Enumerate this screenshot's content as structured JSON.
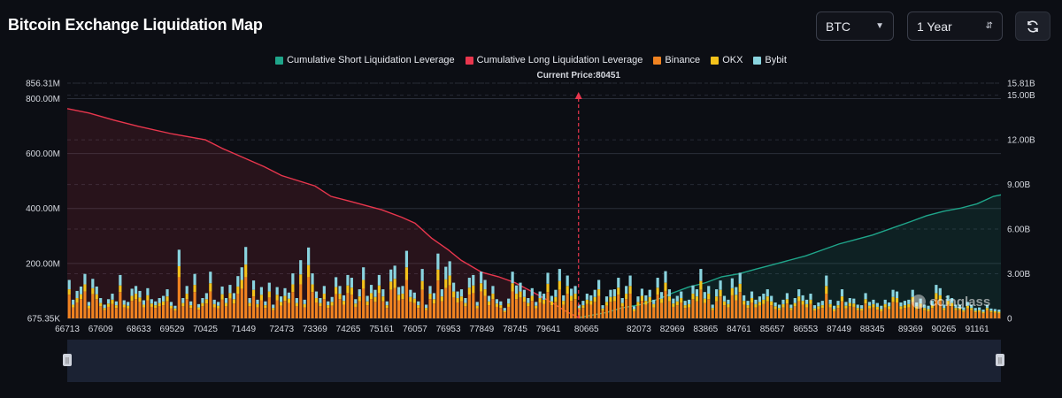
{
  "title": "Bitcoin Exchange Liquidation Map",
  "controls": {
    "coin_select": "BTC",
    "range_select": "1 Year",
    "refresh_icon": "refresh-icon"
  },
  "watermark": "coinglass",
  "chart_data": {
    "type": "bar",
    "stacked": true,
    "title": "",
    "current_price_label": "Current Price:80451",
    "current_price": 80451,
    "x_ticks": [
      "66713",
      "67609",
      "68633",
      "69529",
      "70425",
      "71449",
      "72473",
      "73369",
      "74265",
      "75161",
      "76057",
      "76953",
      "77849",
      "78745",
      "79641",
      "80665",
      "82073",
      "82969",
      "83865",
      "84761",
      "85657",
      "86553",
      "87449",
      "88345",
      "89369",
      "90265",
      "91161"
    ],
    "x_range": [
      66713,
      91800
    ],
    "y_left": {
      "ticks": [
        "675.35K",
        "200.00M",
        "400.00M",
        "600.00M",
        "800.00M",
        "856.31M"
      ],
      "range_m": [
        0.675,
        856.31
      ]
    },
    "y_right": {
      "ticks": [
        "0",
        "3.00B",
        "6.00B",
        "9.00B",
        "12.00B",
        "15.00B",
        "15.81B"
      ],
      "range_b": [
        0,
        15.81
      ]
    },
    "legend": [
      {
        "name": "Cumulative Short Liquidation Leverage",
        "color": "#1fa58a"
      },
      {
        "name": "Cumulative Long Liquidation Leverage",
        "color": "#e8364d"
      },
      {
        "name": "Binance",
        "color": "#f08321"
      },
      {
        "name": "OKX",
        "color": "#f4c21b"
      },
      {
        "name": "Bybit",
        "color": "#8ad4df"
      }
    ],
    "long_cumulative_b": {
      "x": [
        66713,
        67300,
        68000,
        68633,
        69529,
        70425,
        70900,
        71449,
        72000,
        72473,
        73369,
        73800,
        74265,
        75161,
        75700,
        76057,
        76500,
        76953,
        77300,
        77849,
        78300,
        78745,
        79200,
        79641,
        80100,
        80451
      ],
      "values": [
        14.1,
        13.8,
        13.3,
        12.9,
        12.4,
        12.0,
        11.4,
        10.8,
        10.2,
        9.6,
        8.9,
        8.2,
        7.9,
        7.3,
        6.8,
        6.4,
        5.4,
        4.6,
        3.9,
        3.1,
        2.8,
        2.4,
        1.8,
        1.2,
        0.5,
        0.05
      ]
    },
    "short_cumulative_b": {
      "x": [
        80451,
        80665,
        81200,
        81600,
        82073,
        82600,
        82969,
        83400,
        83865,
        84300,
        84761,
        85200,
        85657,
        86100,
        86553,
        87000,
        87449,
        87900,
        88345,
        88800,
        89369,
        89800,
        90265,
        90700,
        91161,
        91600,
        91800
      ],
      "values": [
        0.05,
        0.15,
        0.4,
        0.7,
        0.9,
        1.3,
        1.7,
        2.1,
        2.4,
        2.8,
        3.0,
        3.3,
        3.6,
        3.9,
        4.2,
        4.6,
        5.0,
        5.3,
        5.6,
        6.0,
        6.5,
        6.9,
        7.2,
        7.4,
        7.7,
        8.2,
        8.3
      ]
    },
    "bars_m": {
      "binance": [
        86,
        40,
        58,
        70,
        98,
        36,
        88,
        70,
        44,
        30,
        42,
        52,
        38,
        96,
        40,
        36,
        64,
        70,
        60,
        40,
        66,
        42,
        38,
        44,
        48,
        62,
        36,
        28,
        150,
        44,
        70,
        38,
        96,
        32,
        44,
        54,
        98,
        40,
        36,
        68,
        44,
        72,
        54,
        90,
        108,
        150,
        44,
        80,
        40,
        66,
        38,
        76,
        30,
        66,
        46,
        64,
        56,
        96,
        44,
        124,
        40,
        150,
        96,
        58,
        44,
        70,
        38,
        46,
        88,
        70,
        50,
        92,
        86,
        42,
        62,
        108,
        48,
        70,
        60,
        92,
        62,
        38,
        104,
        110,
        66,
        70,
        140,
        60,
        56,
        38,
        104,
        30,
        70,
        54,
        138,
        62,
        110,
        120,
        76,
        58,
        62,
        44,
        86,
        92,
        36,
        98,
        82,
        48,
        70,
        42,
        38,
        22,
        42,
        98,
        70,
        76,
        60,
        44,
        64,
        36,
        58,
        52,
        96,
        48,
        60,
        104,
        50,
        90,
        64,
        70,
        30,
        38,
        52,
        50,
        60,
        82,
        28,
        46,
        60,
        62,
        86,
        44,
        70,
        90,
        26,
        46,
        64,
        50,
        60,
        40,
        86,
        56,
        100,
        62,
        42,
        48,
        58,
        38,
        40,
        70,
        62,
        104,
        56,
        70,
        30,
        62,
        80,
        48,
        40,
        84,
        66,
        96,
        50,
        38,
        58,
        40,
        46,
        52,
        62,
        48,
        34,
        30,
        40,
        54,
        30,
        44,
        62,
        50,
        40,
        52,
        28,
        34,
        38,
        90,
        40,
        26,
        38,
        62,
        36,
        44,
        42,
        30,
        28,
        54,
        36,
        40,
        32,
        26,
        40,
        34,
        60,
        58,
        34,
        38,
        40,
        60,
        34,
        42,
        30,
        26,
        38,
        70,
        64,
        30,
        50,
        44,
        30,
        30,
        24,
        36,
        30,
        22,
        24,
        18,
        30,
        22,
        20,
        18
      ],
      "okx": [
        20,
        10,
        16,
        18,
        26,
        10,
        22,
        18,
        12,
        8,
        12,
        16,
        10,
        24,
        10,
        10,
        18,
        20,
        16,
        10,
        18,
        12,
        10,
        12,
        14,
        18,
        10,
        8,
        40,
        12,
        20,
        10,
        26,
        8,
        12,
        16,
        30,
        12,
        10,
        20,
        12,
        20,
        16,
        26,
        32,
        46,
        12,
        24,
        12,
        20,
        10,
        22,
        8,
        20,
        14,
        18,
        16,
        28,
        12,
        36,
        12,
        44,
        28,
        16,
        12,
        20,
        10,
        14,
        26,
        20,
        14,
        28,
        26,
        12,
        18,
        32,
        14,
        22,
        18,
        28,
        18,
        10,
        30,
        34,
        20,
        20,
        46,
        18,
        16,
        10,
        32,
        8,
        20,
        16,
        40,
        18,
        32,
        36,
        22,
        16,
        18,
        12,
        26,
        28,
        10,
        30,
        24,
        14,
        20,
        12,
        10,
        6,
        12,
        30,
        20,
        22,
        18,
        12,
        18,
        10,
        16,
        16,
        30,
        14,
        18,
        32,
        14,
        28,
        18,
        20,
        8,
        10,
        16,
        14,
        18,
        24,
        8,
        14,
        18,
        18,
        26,
        12,
        20,
        28,
        8,
        14,
        18,
        14,
        18,
        12,
        26,
        16,
        30,
        18,
        12,
        14,
        16,
        10,
        12,
        20,
        18,
        32,
        16,
        20,
        8,
        18,
        24,
        14,
        12,
        26,
        20,
        30,
        14,
        10,
        16,
        12,
        14,
        16,
        18,
        14,
        10,
        8,
        12,
        16,
        8,
        12,
        18,
        14,
        12,
        16,
        8,
        10,
        10,
        28,
        12,
        8,
        10,
        18,
        10,
        12,
        12,
        8,
        8,
        16,
        10,
        12,
        10,
        8,
        12,
        10,
        18,
        16,
        10,
        10,
        12,
        18,
        10,
        12,
        8,
        8,
        10,
        22,
        20,
        8,
        14,
        12,
        8,
        8,
        6,
        10,
        8,
        6,
        6,
        6,
        8,
        6,
        6,
        6
      ],
      "bybit": [
        34,
        18,
        26,
        28,
        38,
        14,
        34,
        28,
        18,
        12,
        16,
        22,
        14,
        38,
        16,
        14,
        26,
        28,
        24,
        16,
        26,
        16,
        14,
        18,
        20,
        26,
        14,
        10,
        60,
        18,
        28,
        14,
        40,
        12,
        18,
        22,
        42,
        16,
        14,
        28,
        18,
        30,
        22,
        38,
        46,
        64,
        18,
        34,
        16,
        28,
        14,
        32,
        12,
        28,
        20,
        28,
        22,
        40,
        18,
        52,
        16,
        64,
        40,
        24,
        18,
        28,
        14,
        18,
        36,
        28,
        20,
        38,
        36,
        16,
        26,
        46,
        20,
        30,
        26,
        38,
        26,
        14,
        44,
        48,
        28,
        28,
        60,
        26,
        22,
        14,
        44,
        12,
        28,
        22,
        58,
        26,
        46,
        52,
        32,
        24,
        26,
        18,
        36,
        38,
        14,
        42,
        34,
        20,
        28,
        16,
        14,
        10,
        18,
        42,
        30,
        32,
        26,
        18,
        28,
        14,
        24,
        22,
        40,
        20,
        26,
        44,
        20,
        38,
        26,
        28,
        12,
        16,
        22,
        20,
        26,
        34,
        12,
        20,
        26,
        26,
        36,
        18,
        28,
        38,
        10,
        20,
        26,
        20,
        26,
        16,
        36,
        24,
        42,
        26,
        18,
        20,
        24,
        16,
        16,
        30,
        26,
        44,
        24,
        28,
        12,
        26,
        34,
        20,
        16,
        36,
        28,
        40,
        20,
        16,
        24,
        16,
        20,
        22,
        26,
        20,
        14,
        12,
        16,
        22,
        12,
        18,
        26,
        20,
        16,
        22,
        12,
        14,
        16,
        38,
        16,
        12,
        16,
        26,
        14,
        18,
        18,
        12,
        12,
        22,
        14,
        16,
        14,
        12,
        16,
        14,
        26,
        24,
        14,
        16,
        16,
        26,
        14,
        18,
        12,
        12,
        16,
        30,
        26,
        12,
        20,
        18,
        12,
        12,
        10,
        14,
        12,
        10,
        10,
        8,
        12,
        8,
        8,
        8
      ]
    }
  }
}
